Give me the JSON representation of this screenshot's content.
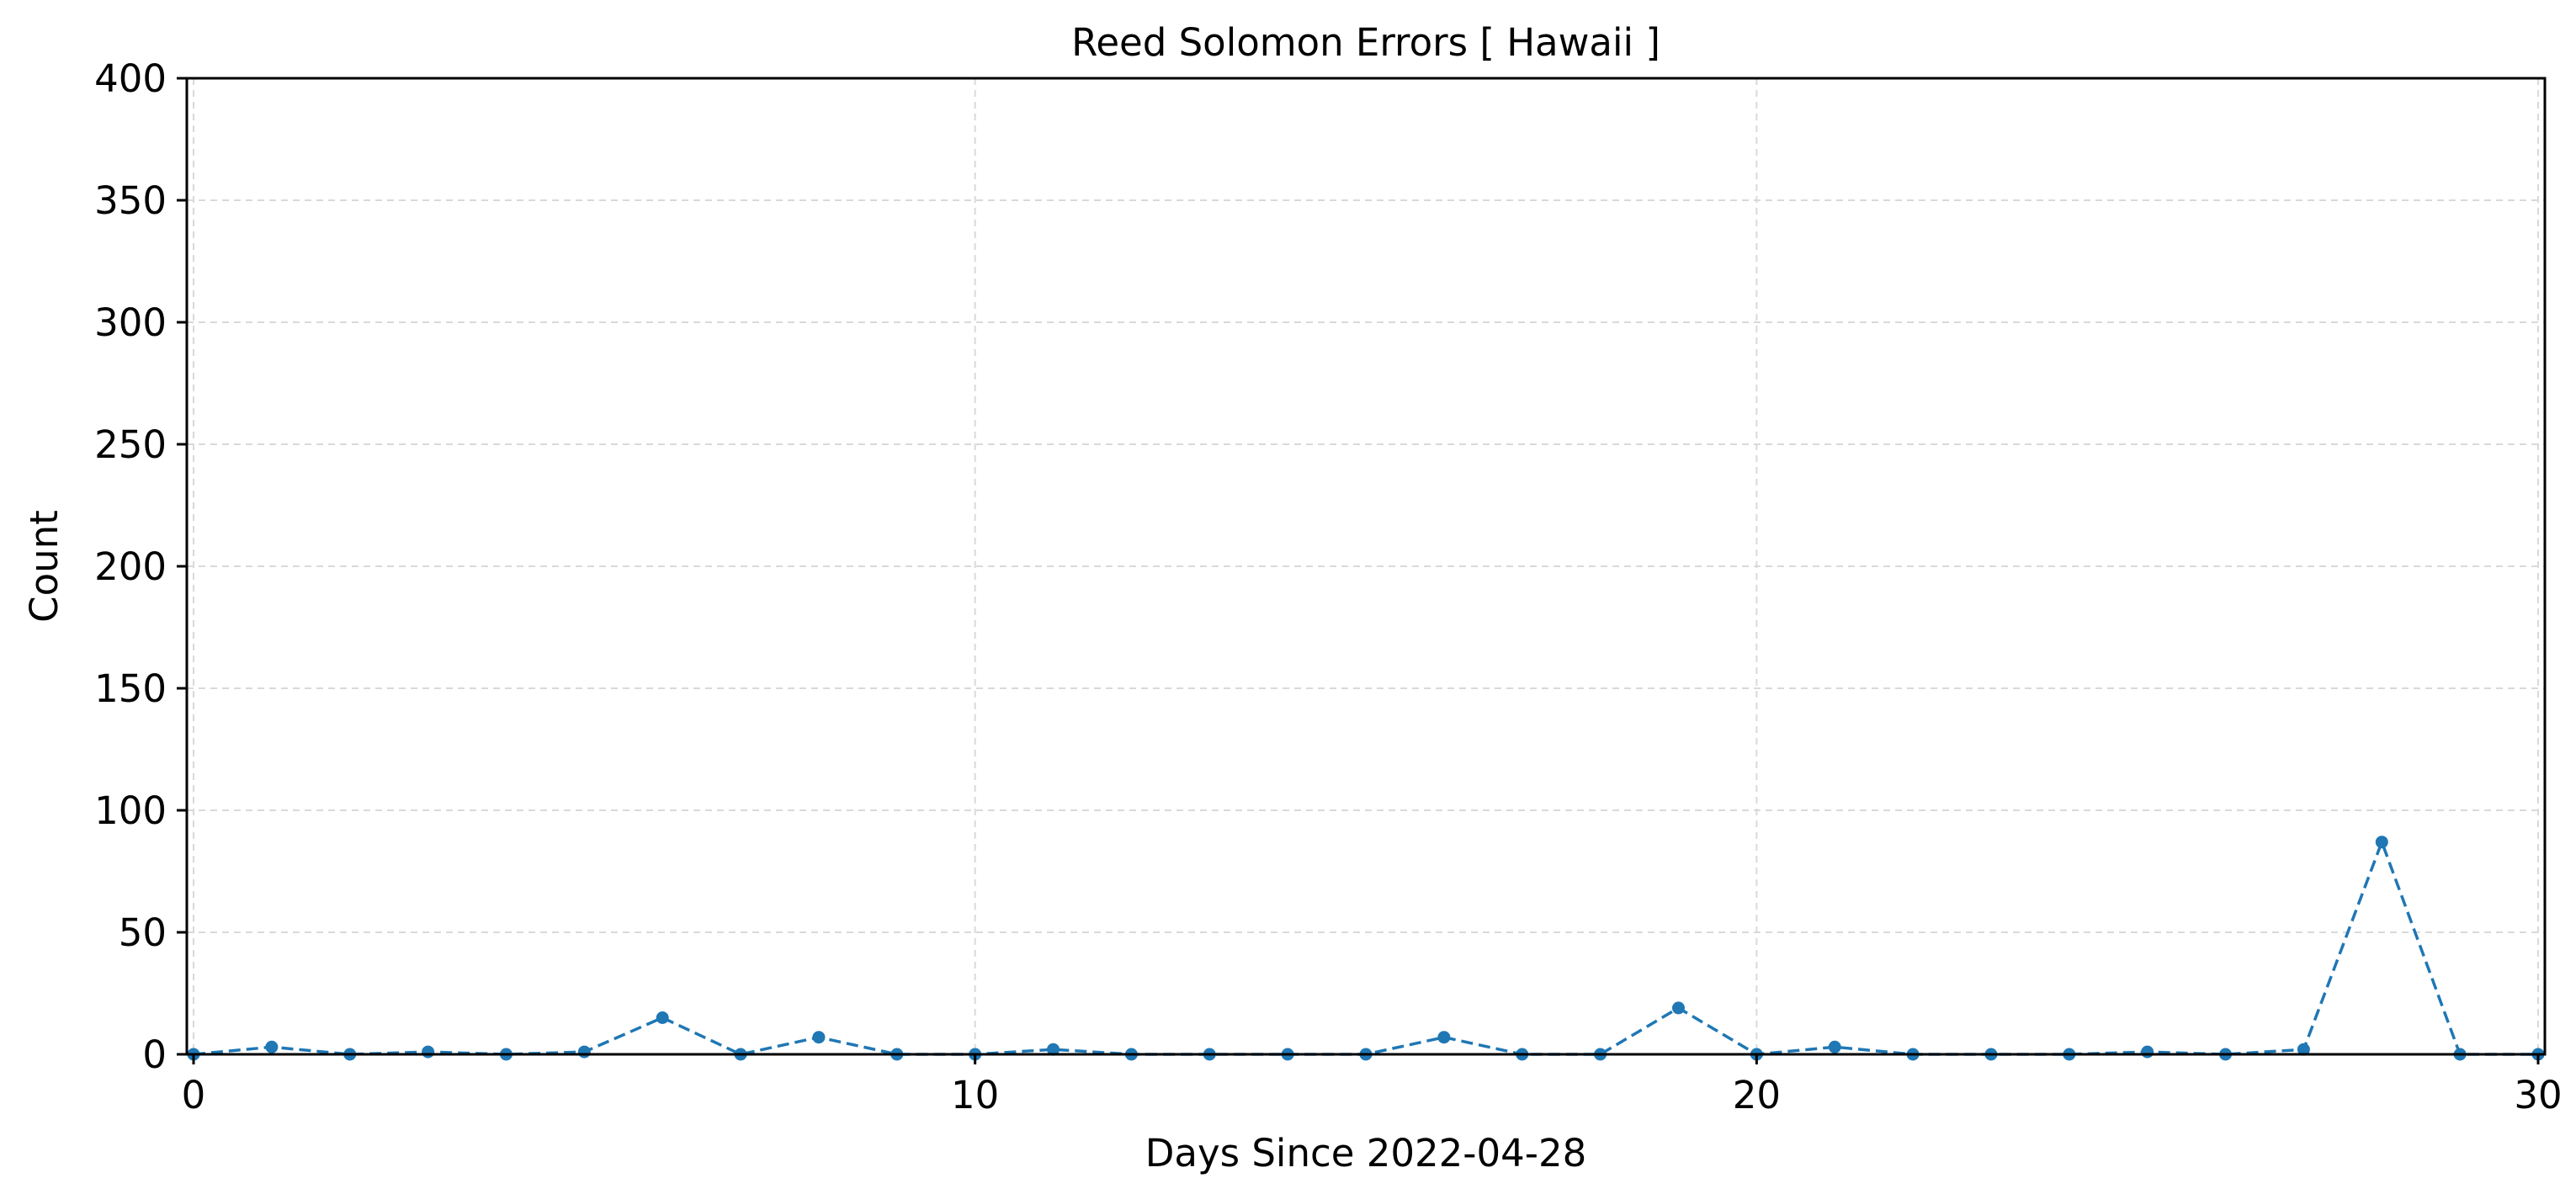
{
  "chart_data": {
    "type": "line",
    "title": "Reed Solomon Errors [ Hawaii ]",
    "xlabel": "Days Since 2022-04-28",
    "ylabel": "Count",
    "xlim": [
      0,
      30
    ],
    "ylim": [
      0,
      400
    ],
    "xticks": [
      0,
      10,
      20,
      30
    ],
    "yticks": [
      0,
      50,
      100,
      150,
      200,
      250,
      300,
      350,
      400
    ],
    "grid": true,
    "line_style": "dashed",
    "marker": "circle",
    "color": "#1f77b4",
    "series": [
      {
        "x": [
          0,
          1,
          2,
          3,
          4,
          5,
          6,
          7,
          8,
          9,
          10,
          11,
          12,
          13,
          14,
          15,
          16,
          17,
          18,
          19,
          20,
          21,
          22,
          23,
          24,
          25,
          26,
          27,
          28,
          29,
          30
        ],
        "values": [
          0,
          3,
          0,
          1,
          0,
          1,
          15,
          0,
          7,
          0,
          0,
          2,
          0,
          0,
          0,
          0,
          7,
          0,
          0,
          19,
          0,
          3,
          0,
          0,
          0,
          1,
          0,
          2,
          87,
          0,
          0
        ]
      }
    ]
  }
}
